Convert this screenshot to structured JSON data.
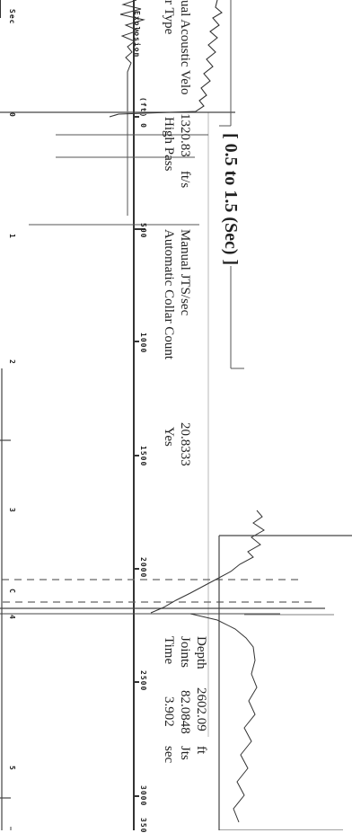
{
  "header": {
    "filter_type_label": "r Type",
    "filter_type_value": "High Pass",
    "velocity_label": "ual Acoustic Velo",
    "velocity_value": "1320.83",
    "velocity_unit": "ft/s",
    "auto_collar_label": "Automatic Collar Count",
    "auto_collar_value": "Yes",
    "jts_label": "Manual JTS/sec",
    "jts_value": "20.8333",
    "time_label": "Time",
    "time_value": "3.902",
    "time_unit": "sec",
    "joints_label": "Joints",
    "joints_value": "82.0848",
    "joints_unit": "Jts",
    "depth_label": "Depth",
    "depth_value": "2602.09",
    "depth_unit": "ft"
  },
  "trace": {
    "explosion_label": "Explosion",
    "sec_label": "Sec",
    "secs": [
      "0",
      "1",
      "2",
      "3",
      "4",
      "5"
    ],
    "depths": [
      "(ft) 0",
      "500",
      "1000",
      "1500",
      "2000",
      "2500",
      "3000",
      "350"
    ],
    "collar_marker": "C",
    "marker_4": "4",
    "range_label": "[ 0.5  to  1.5 (Sec) ]"
  }
}
